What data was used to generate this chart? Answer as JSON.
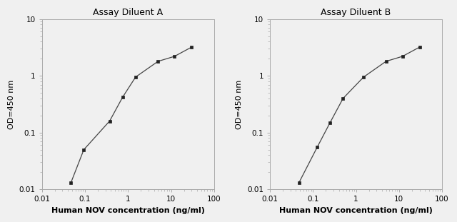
{
  "panel_A": {
    "title": "Assay Diluent A",
    "x": [
      0.047,
      0.094,
      0.375,
      0.75,
      1.5,
      5.0,
      12.0,
      30.0
    ],
    "y": [
      0.013,
      0.05,
      0.16,
      0.42,
      0.95,
      1.8,
      2.2,
      3.2
    ],
    "xlabel": "Human NOV concentration (ng/ml)",
    "ylabel": "OD=450 nm",
    "xlim": [
      0.01,
      100
    ],
    "ylim": [
      0.01,
      10
    ]
  },
  "panel_B": {
    "title": "Assay Diluent B",
    "x": [
      0.047,
      0.125,
      0.25,
      0.5,
      1.5,
      5.0,
      12.0,
      30.0
    ],
    "y": [
      0.013,
      0.055,
      0.15,
      0.4,
      0.95,
      1.8,
      2.2,
      3.2
    ],
    "xlabel": "Human NOV concentration (ng/ml)",
    "ylabel": "OD=450 nm",
    "xlim": [
      0.01,
      100
    ],
    "ylim": [
      0.01,
      10
    ]
  },
  "line_color": "#444444",
  "marker_color": "#222222",
  "marker_size": 3.5,
  "line_width": 0.9,
  "bg_color": "#f0f0f0",
  "spine_color": "#aaaaaa",
  "tick_color": "#555555",
  "title_fontsize": 9,
  "label_fontsize": 8,
  "tick_fontsize": 7.5
}
